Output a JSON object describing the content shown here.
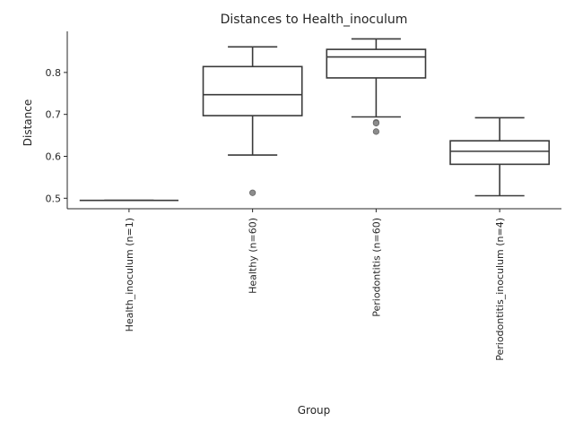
{
  "chart_data": {
    "type": "box",
    "title": "Distances to Health_inoculum",
    "xlabel": "Group",
    "ylabel": "Distance",
    "ylim": [
      0.475,
      0.898
    ],
    "yticks": [
      0.5,
      0.6,
      0.7,
      0.8
    ],
    "ytick_labels": [
      "0.5",
      "0.6",
      "0.7",
      "0.8"
    ],
    "grid": false,
    "categories": [
      "Health_inoculum (n=1)",
      "Healthy (n=60)",
      "Periodontitis (n=60)",
      "Periodontitis_inoculum (n=4)"
    ],
    "boxes": [
      {
        "whislo": 0.495,
        "q1": 0.495,
        "med": 0.495,
        "q3": 0.495,
        "whishi": 0.495,
        "fliers": []
      },
      {
        "whislo": 0.603,
        "q1": 0.697,
        "med": 0.747,
        "q3": 0.814,
        "whishi": 0.861,
        "fliers": [
          0.513
        ]
      },
      {
        "whislo": 0.694,
        "q1": 0.787,
        "med": 0.837,
        "q3": 0.855,
        "whishi": 0.88,
        "fliers": [
          0.681,
          0.679,
          0.659
        ]
      },
      {
        "whislo": 0.506,
        "q1": 0.581,
        "med": 0.612,
        "q3": 0.637,
        "whishi": 0.692,
        "fliers": []
      }
    ]
  }
}
